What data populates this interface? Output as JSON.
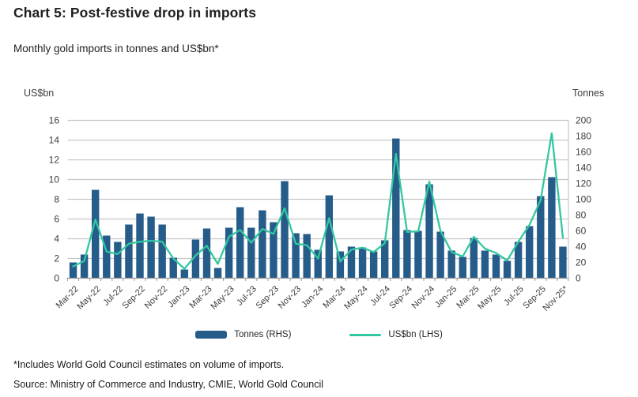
{
  "header": {
    "title": "Chart 5: Post-festive drop in imports",
    "subtitle": "Monthly gold imports in tonnes and US$bn*"
  },
  "colors": {
    "bar": "#255c8a",
    "line": "#32c7a0",
    "grid": "#c6c6c6",
    "axis": "#9a9a9a",
    "text": "#3d3d3d"
  },
  "chart_data": {
    "type": "combo",
    "categories": [
      "Mar-22",
      "Apr-22",
      "May-22",
      "Jun-22",
      "Jul-22",
      "Aug-22",
      "Sep-22",
      "Oct-22",
      "Nov-22",
      "Dec-22",
      "Jan-23",
      "Feb-23",
      "Mar-23",
      "Apr-23",
      "May-23",
      "Jun-23",
      "Jul-23",
      "Aug-23",
      "Sep-23",
      "Oct-23",
      "Nov-23",
      "Dec-23",
      "Jan-24",
      "Feb-24",
      "Mar-24",
      "Apr-24",
      "May-24",
      "Jun-24",
      "Jul-24",
      "Aug-24",
      "Sep-24",
      "Oct-24",
      "Nov-24",
      "Dec-24",
      "Jan-25",
      "Feb-25",
      "Mar-25",
      "Apr-25",
      "May-25",
      "Jun-25",
      "Jul-25",
      "Aug-25",
      "Sep-25",
      "Oct-25",
      "Nov-25*"
    ],
    "x_label_every": 2,
    "series": [
      {
        "name": "Tonnes (RHS)",
        "type": "bar",
        "axis": "right",
        "values": [
          20,
          30,
          112,
          54,
          46,
          68,
          82,
          78,
          68,
          26,
          11,
          49,
          63,
          13,
          64,
          90,
          64,
          86,
          71,
          123,
          57,
          56,
          36,
          105,
          34,
          40,
          39,
          34,
          48,
          177,
          61,
          60,
          119,
          59,
          35,
          27,
          51,
          35,
          30,
          22,
          46,
          66,
          104,
          128,
          40
        ]
      },
      {
        "name": "US$bn (LHS)",
        "type": "line",
        "axis": "left",
        "values": [
          1.2,
          1.75,
          5.95,
          2.7,
          2.45,
          3.5,
          3.7,
          3.8,
          3.7,
          2.0,
          0.95,
          2.3,
          3.3,
          1.45,
          4.2,
          4.9,
          3.6,
          5.0,
          4.5,
          7.1,
          3.5,
          3.35,
          2.0,
          6.1,
          1.7,
          2.9,
          3.1,
          2.65,
          3.55,
          12.6,
          4.7,
          4.75,
          9.8,
          4.8,
          2.65,
          2.2,
          4.2,
          3.0,
          2.55,
          1.8,
          3.7,
          5.4,
          7.9,
          14.7,
          4.1
        ]
      }
    ],
    "left_axis": {
      "title": "US$bn",
      "min": 0,
      "max": 16,
      "ticks": [
        0,
        2,
        4,
        6,
        8,
        10,
        12,
        14,
        16
      ]
    },
    "right_axis": {
      "title": "Tonnes",
      "min": 0,
      "max": 200,
      "ticks": [
        0,
        20,
        40,
        60,
        80,
        100,
        120,
        140,
        160,
        180,
        200
      ]
    },
    "grid": true,
    "legend_position": "bottom"
  },
  "legend": {
    "bar_label": "Tonnes (RHS)",
    "line_label": "US$bn (LHS)"
  },
  "footer": {
    "footnote": "*Includes World Gold Council estimates on volume of imports.",
    "source": "Source: Ministry of Commerce and Industry, CMIE, World Gold Council"
  }
}
